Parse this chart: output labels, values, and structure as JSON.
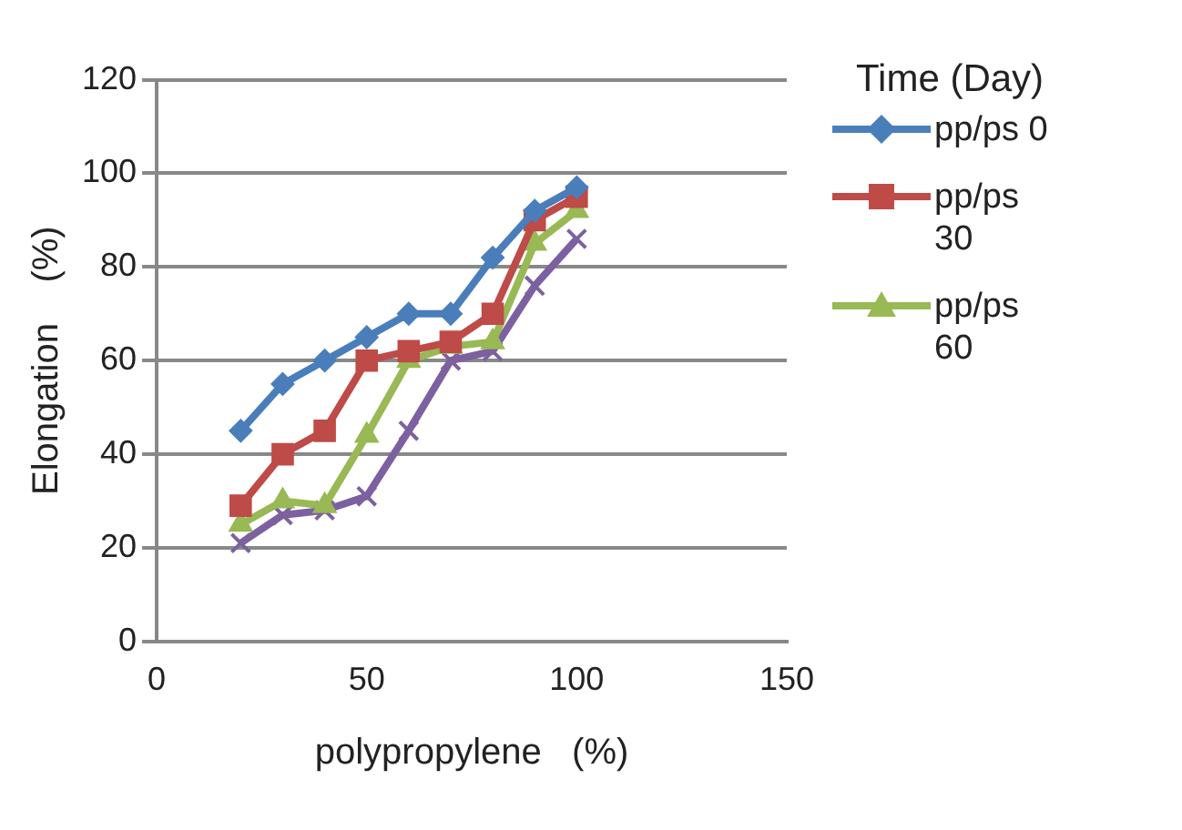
{
  "chart_data": {
    "type": "line",
    "xlabel": "polypropylene   (%)",
    "ylabel": "Elongation    (%)",
    "legend_title": "Time (Day)",
    "x": [
      20,
      30,
      40,
      50,
      60,
      70,
      80,
      90,
      100
    ],
    "series": [
      {
        "name": "pp/ps 0",
        "color": "#4a7ebb",
        "marker": "diamond",
        "values": [
          45,
          55,
          60,
          65,
          70,
          70,
          82,
          92,
          97
        ]
      },
      {
        "name": "pp/ps 30",
        "color": "#be4b48",
        "marker": "square",
        "values": [
          29,
          40,
          45,
          60,
          62,
          64,
          70,
          90,
          95
        ]
      },
      {
        "name": "pp/ps 60",
        "color": "#98b954",
        "marker": "triangle",
        "values": [
          25,
          30,
          29,
          44,
          60,
          63,
          64,
          85,
          92
        ]
      },
      {
        "color": "#7d60a0",
        "marker": "cross",
        "values": [
          21,
          27,
          28,
          31,
          45,
          60,
          62,
          76,
          86
        ]
      }
    ],
    "xlim": [
      0,
      150
    ],
    "xticks": [
      0,
      50,
      100,
      150
    ],
    "ylim": [
      0,
      120
    ],
    "yticks": [
      0,
      20,
      40,
      60,
      80,
      100,
      120
    ],
    "grid": "y",
    "legend": "right"
  }
}
